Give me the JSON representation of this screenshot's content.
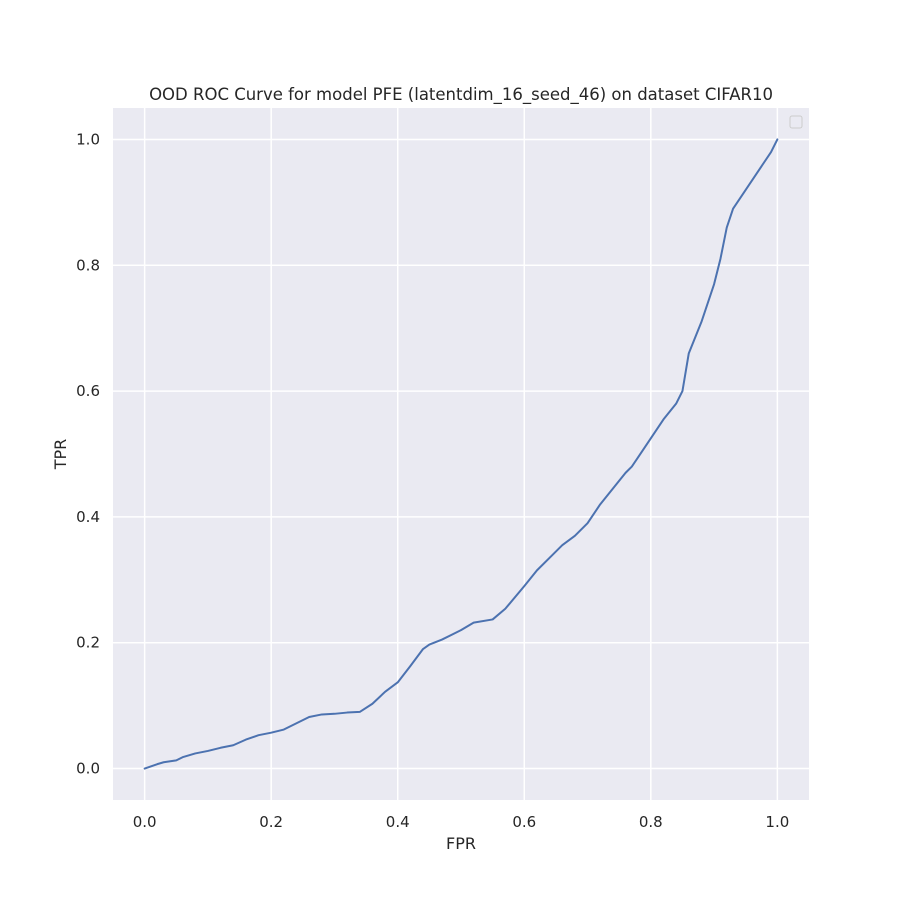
{
  "chart_data": {
    "type": "line",
    "title": "OOD ROC Curve for model PFE (latentdim_16_seed_46) on dataset CIFAR10",
    "xlabel": "FPR",
    "ylabel": "TPR",
    "xlim": [
      -0.05,
      1.05
    ],
    "ylim": [
      -0.05,
      1.05
    ],
    "xticks": [
      0.0,
      0.2,
      0.4,
      0.6,
      0.8,
      1.0
    ],
    "yticks": [
      0.0,
      0.2,
      0.4,
      0.6,
      0.8,
      1.0
    ],
    "xtick_labels": [
      "0.0",
      "0.2",
      "0.4",
      "0.6",
      "0.8",
      "1.0"
    ],
    "ytick_labels": [
      "0.0",
      "0.2",
      "0.4",
      "0.6",
      "0.8",
      "1.0"
    ],
    "grid": true,
    "legend": {
      "placement": "upper-right",
      "entries": []
    },
    "colors": {
      "background": "#eaeaf2",
      "grid": "#ffffff",
      "line": "#4c72b0",
      "text": "#262626"
    },
    "series": [
      {
        "x": [
          0.0,
          0.02,
          0.03,
          0.05,
          0.06,
          0.08,
          0.1,
          0.12,
          0.14,
          0.16,
          0.18,
          0.2,
          0.22,
          0.24,
          0.26,
          0.28,
          0.3,
          0.32,
          0.34,
          0.36,
          0.38,
          0.4,
          0.42,
          0.44,
          0.45,
          0.47,
          0.5,
          0.52,
          0.55,
          0.57,
          0.6,
          0.62,
          0.64,
          0.66,
          0.68,
          0.7,
          0.72,
          0.74,
          0.76,
          0.77,
          0.78,
          0.8,
          0.82,
          0.84,
          0.85,
          0.86,
          0.88,
          0.9,
          0.91,
          0.92,
          0.93,
          0.95,
          0.97,
          0.99,
          1.0
        ],
        "y": [
          0.0,
          0.007,
          0.01,
          0.013,
          0.018,
          0.024,
          0.028,
          0.033,
          0.037,
          0.046,
          0.053,
          0.057,
          0.062,
          0.072,
          0.082,
          0.086,
          0.087,
          0.089,
          0.09,
          0.103,
          0.122,
          0.137,
          0.163,
          0.19,
          0.197,
          0.205,
          0.22,
          0.232,
          0.237,
          0.254,
          0.29,
          0.315,
          0.335,
          0.355,
          0.37,
          0.39,
          0.42,
          0.445,
          0.47,
          0.48,
          0.495,
          0.525,
          0.555,
          0.58,
          0.6,
          0.66,
          0.71,
          0.77,
          0.81,
          0.86,
          0.89,
          0.92,
          0.95,
          0.98,
          1.0
        ]
      }
    ]
  }
}
